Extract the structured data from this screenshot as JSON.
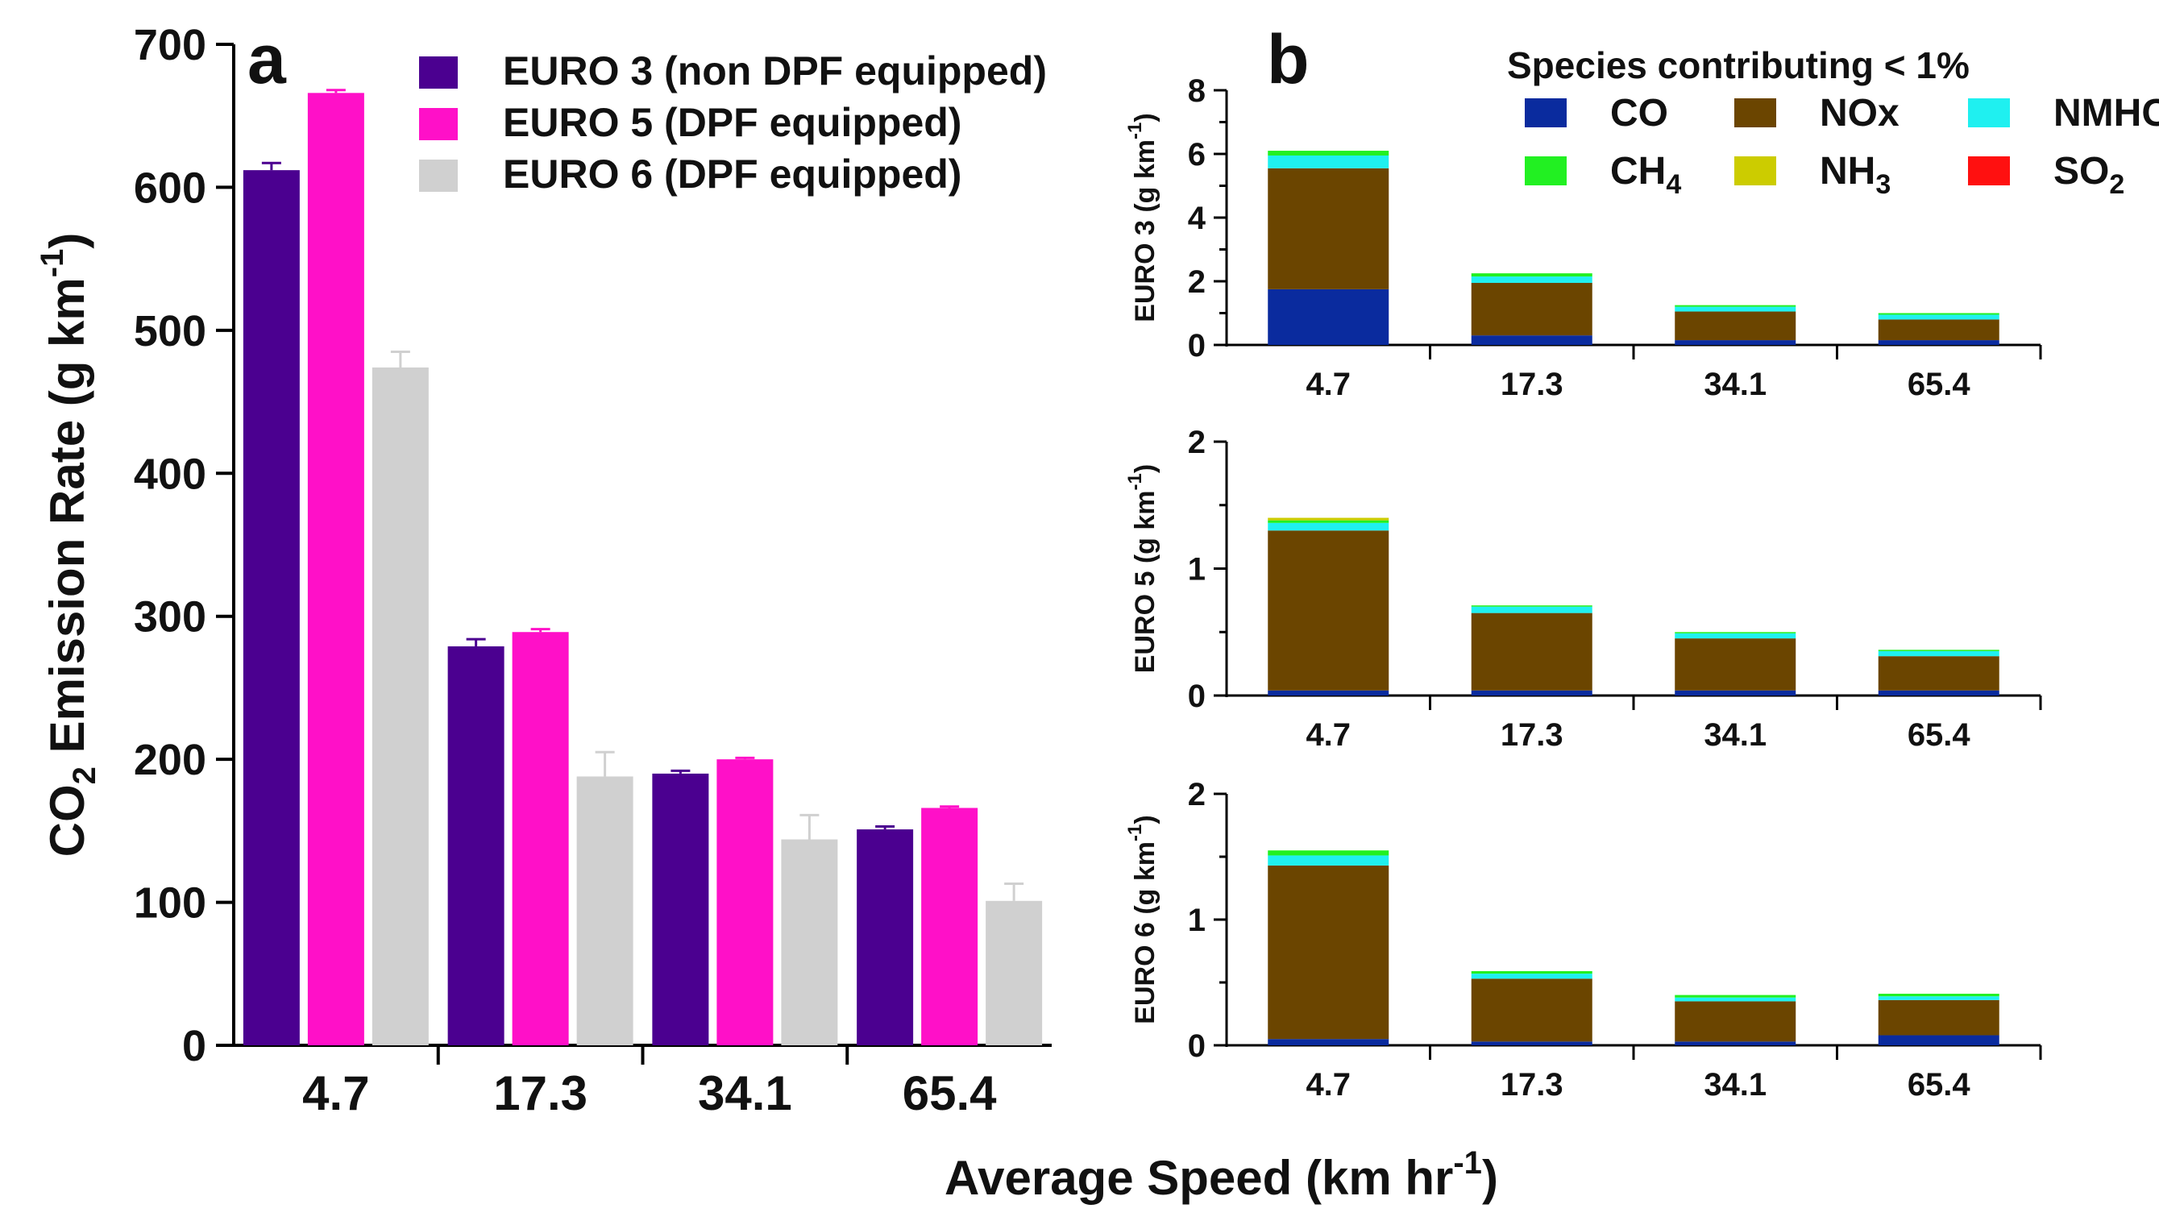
{
  "chart_data": [
    {
      "panel": "a",
      "type": "bar",
      "ylabel_main": "CO",
      "ylabel_sub": "2",
      "ylabel_rest": " Emission Rate (g km",
      "ylabel_sup": "-1",
      "ylabel_close": ")",
      "ylim": [
        0,
        700
      ],
      "yticks": [
        "0",
        "100",
        "200",
        "300",
        "400",
        "500",
        "600",
        "700"
      ],
      "categories": [
        "4.7",
        "17.3",
        "34.1",
        "65.4"
      ],
      "series": [
        {
          "name": "EURO 3 (non DPF equipped)",
          "color": "#4b0090",
          "values": [
            612,
            279,
            190,
            151
          ],
          "errors": [
            5,
            5,
            2,
            2
          ]
        },
        {
          "name": "EURO 5 (DPF equipped)",
          "color": "#ff10c8",
          "values": [
            666,
            289,
            200,
            166
          ],
          "errors": [
            2,
            2,
            1,
            1
          ]
        },
        {
          "name": "EURO 6 (DPF equipped)",
          "color": "#d0d0d0",
          "values": [
            474,
            188,
            144,
            101
          ],
          "errors": [
            11,
            17,
            17,
            12
          ]
        }
      ]
    },
    {
      "panel": "b",
      "type": "bar",
      "stacked": true,
      "legend_title": "Species contributing < 1%",
      "species": [
        {
          "name": "CO",
          "sub": "",
          "color": "#0a2b9e"
        },
        {
          "name": "NOx",
          "sub": "",
          "color": "#6b4500"
        },
        {
          "name": "NMHC",
          "sub": "",
          "color": "#1ff0f0"
        },
        {
          "name": "CH",
          "sub": "4",
          "color": "#22f022"
        },
        {
          "name": "NH",
          "sub": "3",
          "color": "#cccc00"
        },
        {
          "name": "SO",
          "sub": "2",
          "color": "#ff1010"
        }
      ],
      "categories": [
        "4.7",
        "17.3",
        "34.1",
        "65.4"
      ],
      "subplots": [
        {
          "ylabel": "EURO 3 (g km",
          "ylabel_sup": "-1",
          "ylabel_close": ")",
          "ylim": [
            0,
            8
          ],
          "yticks": [
            "0",
            "2",
            "4",
            "6",
            "8"
          ],
          "stacks": {
            "CO": [
              1.75,
              0.3,
              0.15,
              0.15
            ],
            "NOx": [
              3.8,
              1.65,
              0.9,
              0.65
            ],
            "NMHC": [
              0.4,
              0.2,
              0.15,
              0.15
            ],
            "CH4": [
              0.15,
              0.1,
              0.05,
              0.05
            ],
            "NH3": [
              0,
              0,
              0,
              0
            ],
            "SO2": [
              0,
              0,
              0,
              0
            ]
          }
        },
        {
          "ylabel": "EURO 5 (g km",
          "ylabel_sup": "-1",
          "ylabel_close": ")",
          "ylim": [
            0,
            2
          ],
          "yticks": [
            "0",
            "1",
            "2"
          ],
          "stacks": {
            "CO": [
              0.04,
              0.04,
              0.04,
              0.04
            ],
            "NOx": [
              1.26,
              0.61,
              0.41,
              0.27
            ],
            "NMHC": [
              0.06,
              0.05,
              0.04,
              0.04
            ],
            "CH4": [
              0.02,
              0.01,
              0.01,
              0.01
            ],
            "NH3": [
              0.02,
              0,
              0,
              0
            ],
            "SO2": [
              0,
              0,
              0,
              0
            ]
          }
        },
        {
          "ylabel": "EURO 6 (g km",
          "ylabel_sup": "-1",
          "ylabel_close": ")",
          "ylim": [
            0,
            2
          ],
          "yticks": [
            "0",
            "1",
            "2"
          ],
          "stacks": {
            "CO": [
              0.05,
              0.03,
              0.03,
              0.08
            ],
            "NOx": [
              1.38,
              0.5,
              0.32,
              0.28
            ],
            "NMHC": [
              0.08,
              0.04,
              0.03,
              0.03
            ],
            "CH4": [
              0.04,
              0.02,
              0.02,
              0.02
            ],
            "NH3": [
              0,
              0,
              0,
              0
            ],
            "SO2": [
              0,
              0,
              0,
              0
            ]
          }
        }
      ]
    }
  ],
  "labels": {
    "panel_a": "a",
    "panel_b": "b",
    "xlabel_main": "Average Speed (km hr",
    "xlabel_sup": "-1",
    "xlabel_close": ")"
  }
}
